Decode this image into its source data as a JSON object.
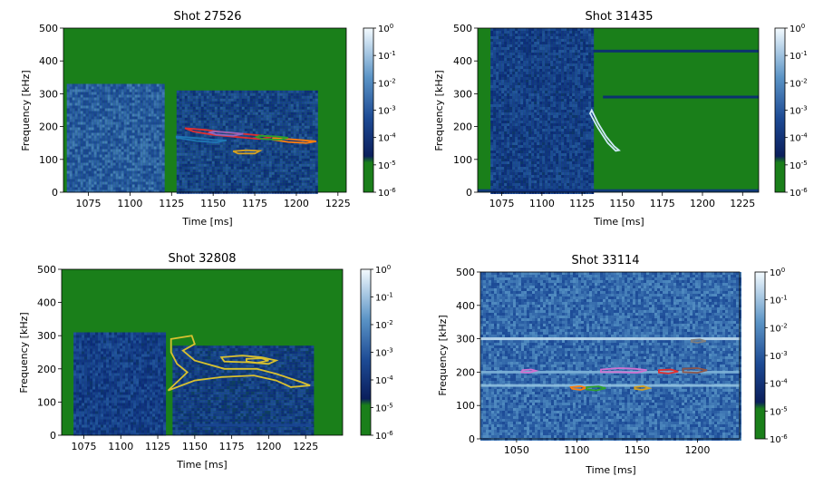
{
  "figure": {
    "colors": {
      "background_low": "#1a7f1a",
      "cmap": [
        "#1a7f1a",
        "#0b2a78",
        "#1f4f9a",
        "#4b86bd",
        "#8fc0df",
        "#f2fafe"
      ]
    }
  },
  "chart_data": [
    {
      "type": "heatmap",
      "title": "Shot 27526",
      "xlabel": "Time [ms]",
      "ylabel": "Frequency [kHz]",
      "xlim": [
        1060,
        1230
      ],
      "ylim": [
        0,
        500
      ],
      "xticks": [
        1075,
        1100,
        1125,
        1150,
        1175,
        1200,
        1225
      ],
      "xtick_labels": [
        "1075",
        "1100",
        "1125",
        "1150",
        "1175",
        "1200",
        "1225"
      ],
      "yticks": [
        0,
        100,
        200,
        300,
        400,
        500
      ],
      "ytick_labels": [
        "0",
        "100",
        "200",
        "300",
        "400",
        "500"
      ],
      "colorbar": {
        "ticks": [
          "10^0",
          "10^-1",
          "10^-2",
          "10^-3",
          "10^-4",
          "10^-5",
          "10^-6"
        ]
      },
      "bands": [
        {
          "t0": 1062,
          "t1": 1120,
          "fmax": 330,
          "level": 0.45
        },
        {
          "t0": 1128,
          "t1": 1213,
          "fmax": 310,
          "level": 0.32
        }
      ],
      "lines": [],
      "contours": [
        {
          "color": "#e03030",
          "points": [
            [
              1133,
              195
            ],
            [
              1145,
              190
            ],
            [
              1158,
              182
            ],
            [
              1168,
              178
            ],
            [
              1180,
              172
            ],
            [
              1185,
              168
            ],
            [
              1178,
              162
            ],
            [
              1165,
              168
            ],
            [
              1150,
              175
            ],
            [
              1138,
              185
            ],
            [
              1133,
              195
            ]
          ]
        },
        {
          "color": "#1f77b4",
          "points": [
            [
              1128,
              170
            ],
            [
              1140,
              165
            ],
            [
              1150,
              160
            ],
            [
              1158,
              158
            ],
            [
              1152,
              152
            ],
            [
              1140,
              156
            ],
            [
              1128,
              166
            ],
            [
              1128,
              170
            ]
          ]
        },
        {
          "color": "#ff7f0e",
          "points": [
            [
              1186,
              165
            ],
            [
              1195,
              162
            ],
            [
              1205,
              158
            ],
            [
              1212,
              155
            ],
            [
              1206,
              150
            ],
            [
              1195,
              153
            ],
            [
              1186,
              160
            ],
            [
              1186,
              165
            ]
          ]
        },
        {
          "color": "#2ca02c",
          "points": [
            [
              1178,
              172
            ],
            [
              1188,
              170
            ],
            [
              1195,
              166
            ],
            [
              1190,
              160
            ],
            [
              1180,
              162
            ],
            [
              1176,
              168
            ],
            [
              1178,
              172
            ]
          ]
        },
        {
          "color": "#9467bd",
          "points": [
            [
              1150,
              185
            ],
            [
              1160,
              182
            ],
            [
              1168,
              178
            ],
            [
              1162,
              172
            ],
            [
              1152,
              176
            ],
            [
              1148,
              182
            ],
            [
              1150,
              185
            ]
          ]
        },
        {
          "color": "#d4a020",
          "points": [
            [
              1162,
              125
            ],
            [
              1170,
              128
            ],
            [
              1178,
              126
            ],
            [
              1175,
              118
            ],
            [
              1165,
              118
            ],
            [
              1162,
              125
            ]
          ]
        }
      ]
    },
    {
      "type": "heatmap",
      "title": "Shot 31435",
      "xlabel": "Time [ms]",
      "ylabel": "Frequency [kHz]",
      "xlim": [
        1060,
        1235
      ],
      "ylim": [
        0,
        500
      ],
      "xticks": [
        1075,
        1100,
        1125,
        1150,
        1175,
        1200,
        1225
      ],
      "xtick_labels": [
        "1075",
        "1100",
        "1125",
        "1150",
        "1175",
        "1200",
        "1225"
      ],
      "yticks": [
        0,
        100,
        200,
        300,
        400,
        500
      ],
      "ytick_labels": [
        "0",
        "100",
        "200",
        "300",
        "400",
        "500"
      ],
      "colorbar": {
        "ticks": [
          "10^0",
          "10^-1",
          "10^-2",
          "10^-3",
          "10^-4",
          "10^-5",
          "10^-6"
        ]
      },
      "bands": [
        {
          "t0": 1068,
          "t1": 1132,
          "fmax": 500,
          "level": 0.3
        }
      ],
      "lines": [
        {
          "t0": 1132,
          "t1": 1235,
          "f": 430,
          "level": 0.2
        },
        {
          "t0": 1138,
          "t1": 1235,
          "f": 290,
          "level": 0.2
        },
        {
          "t0": 1060,
          "t1": 1235,
          "f": 5,
          "level": 0.25
        }
      ],
      "contours": [
        {
          "color": "#cfe8f8",
          "points": [
            [
              1131,
              250
            ],
            [
              1135,
              210
            ],
            [
              1140,
              170
            ],
            [
              1145,
              140
            ],
            [
              1148,
              128
            ],
            [
              1146,
              126
            ],
            [
              1141,
              150
            ],
            [
              1135,
              195
            ],
            [
              1130,
              240
            ],
            [
              1131,
              250
            ]
          ]
        }
      ]
    },
    {
      "type": "heatmap",
      "title": "Shot 32808",
      "xlabel": "Time [ms]",
      "ylabel": "Frequency [kHz]",
      "xlim": [
        1060,
        1250
      ],
      "ylim": [
        0,
        500
      ],
      "xticks": [
        1075,
        1100,
        1125,
        1150,
        1175,
        1200,
        1225
      ],
      "xtick_labels": [
        "1075",
        "1100",
        "1125",
        "1150",
        "1175",
        "1200",
        "1225"
      ],
      "yticks": [
        0,
        100,
        200,
        300,
        400,
        500
      ],
      "ytick_labels": [
        "0",
        "100",
        "200",
        "300",
        "400",
        "500"
      ],
      "colorbar": {
        "ticks": [
          "10^0",
          "10^-1",
          "10^-2",
          "10^-3",
          "10^-4",
          "10^-5",
          "10^-6"
        ]
      },
      "bands": [
        {
          "t0": 1068,
          "t1": 1130,
          "fmax": 310,
          "level": 0.3
        },
        {
          "t0": 1135,
          "t1": 1230,
          "fmax": 270,
          "level": 0.28
        }
      ],
      "lines": [
        {
          "t0": 1150,
          "t1": 1230,
          "f": 30,
          "level": 0.35
        }
      ],
      "contours": [
        {
          "color": "#d8c030",
          "points": [
            [
              1134,
              290
            ],
            [
              1148,
              300
            ],
            [
              1150,
              275
            ],
            [
              1142,
              255
            ],
            [
              1150,
              225
            ],
            [
              1170,
              200
            ],
            [
              1192,
              200
            ],
            [
              1205,
              185
            ],
            [
              1222,
              160
            ],
            [
              1228,
              150
            ],
            [
              1215,
              145
            ],
            [
              1205,
              165
            ],
            [
              1190,
              180
            ],
            [
              1168,
              175
            ],
            [
              1150,
              165
            ],
            [
              1135,
              140
            ],
            [
              1132,
              135
            ],
            [
              1138,
              160
            ],
            [
              1145,
              190
            ],
            [
              1138,
              215
            ],
            [
              1134,
              250
            ],
            [
              1134,
              290
            ]
          ]
        },
        {
          "color": "#d8c030",
          "points": [
            [
              1168,
              235
            ],
            [
              1182,
              240
            ],
            [
              1195,
              235
            ],
            [
              1205,
              225
            ],
            [
              1200,
              215
            ],
            [
              1185,
              220
            ],
            [
              1170,
              222
            ],
            [
              1168,
              235
            ]
          ]
        },
        {
          "color": "#d8c030",
          "points": [
            [
              1185,
              230
            ],
            [
              1195,
              232
            ],
            [
              1200,
              225
            ],
            [
              1192,
              218
            ],
            [
              1185,
              222
            ],
            [
              1185,
              230
            ]
          ]
        }
      ]
    },
    {
      "type": "heatmap",
      "title": "Shot 33114",
      "xlabel": "Time [ms]",
      "ylabel": "Frequency [kHz]",
      "xlim": [
        1020,
        1235
      ],
      "ylim": [
        0,
        500
      ],
      "xticks": [
        1050,
        1100,
        1150,
        1200
      ],
      "xtick_labels": [
        "1050",
        "1100",
        "1150",
        "1200"
      ],
      "yticks": [
        0,
        100,
        200,
        300,
        400,
        500
      ],
      "ytick_labels": [
        "0",
        "100",
        "200",
        "300",
        "400",
        "500"
      ],
      "colorbar": {
        "ticks": [
          "10^0",
          "10^-1",
          "10^-2",
          "10^-3",
          "10^-4",
          "10^-5",
          "10^-6"
        ]
      },
      "bands": [
        {
          "t0": 1020,
          "t1": 1235,
          "fmax": 500,
          "level": 0.5
        }
      ],
      "lines": [
        {
          "t0": 1020,
          "t1": 1235,
          "f": 300,
          "level": 0.9
        },
        {
          "t0": 1020,
          "t1": 1235,
          "f": 160,
          "level": 0.8
        },
        {
          "t0": 1020,
          "t1": 1235,
          "f": 200,
          "level": 0.75
        }
      ],
      "contours": [
        {
          "color": "#d070d0",
          "points": [
            [
              1055,
              206
            ],
            [
              1062,
              208
            ],
            [
              1066,
              204
            ],
            [
              1060,
              198
            ],
            [
              1054,
              200
            ],
            [
              1055,
              206
            ]
          ]
        },
        {
          "color": "#ff7f0e",
          "points": [
            [
              1095,
              155
            ],
            [
              1103,
              158
            ],
            [
              1108,
              153
            ],
            [
              1103,
              147
            ],
            [
              1096,
              150
            ],
            [
              1095,
              155
            ]
          ]
        },
        {
          "color": "#2ca02c",
          "points": [
            [
              1108,
              155
            ],
            [
              1118,
              157
            ],
            [
              1124,
              152
            ],
            [
              1116,
              145
            ],
            [
              1108,
              148
            ],
            [
              1108,
              155
            ]
          ]
        },
        {
          "color": "#d070d0",
          "points": [
            [
              1120,
              208
            ],
            [
              1135,
              212
            ],
            [
              1148,
              210
            ],
            [
              1158,
              206
            ],
            [
              1150,
              198
            ],
            [
              1135,
              200
            ],
            [
              1120,
              200
            ],
            [
              1120,
              208
            ]
          ]
        },
        {
          "color": "#e03030",
          "points": [
            [
              1168,
              206
            ],
            [
              1178,
              208
            ],
            [
              1184,
              202
            ],
            [
              1176,
              196
            ],
            [
              1168,
              199
            ],
            [
              1168,
              206
            ]
          ]
        },
        {
          "color": "#8c564b",
          "points": [
            [
              1188,
              210
            ],
            [
              1200,
              212
            ],
            [
              1208,
              206
            ],
            [
              1200,
              198
            ],
            [
              1188,
              200
            ],
            [
              1188,
              210
            ]
          ]
        },
        {
          "color": "#7f7f7f",
          "points": [
            [
              1195,
              296
            ],
            [
              1202,
              298
            ],
            [
              1207,
              293
            ],
            [
              1200,
              288
            ],
            [
              1195,
              291
            ],
            [
              1195,
              296
            ]
          ]
        },
        {
          "color": "#d4a020",
          "points": [
            [
              1148,
              155
            ],
            [
              1155,
              158
            ],
            [
              1160,
              152
            ],
            [
              1154,
              147
            ],
            [
              1148,
              150
            ],
            [
              1148,
              155
            ]
          ]
        }
      ]
    }
  ]
}
